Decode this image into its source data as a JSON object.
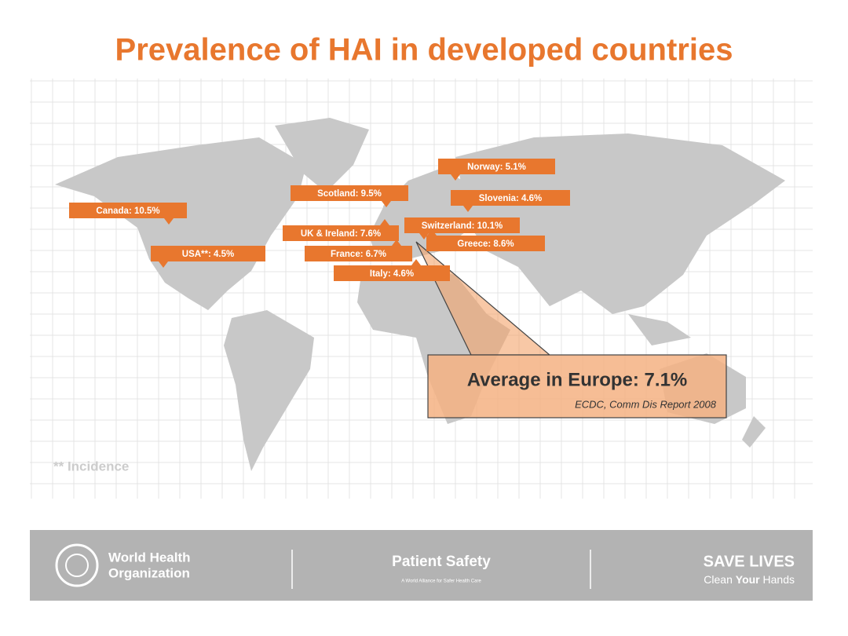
{
  "title": "Prevalence of HAI in developed countries",
  "labels": [
    {
      "text": "Canada: 10.5%"
    },
    {
      "text": "USA**: 4.5%"
    },
    {
      "text": "Scotland: 9.5%"
    },
    {
      "text": "Norway: 5.1%"
    },
    {
      "text": "Slovenia: 4.6%"
    },
    {
      "text": "UK & Ireland: 7.6%"
    },
    {
      "text": "Switzerland: 10.1%"
    },
    {
      "text": "Greece: 8.6%"
    },
    {
      "text": "France: 6.7%"
    },
    {
      "text": "Italy: 4.6%"
    }
  ],
  "callout": {
    "heading": "Average in Europe: 7.1%",
    "source": "ECDC, Comm Dis Report 2008"
  },
  "footnote": "** Incidence",
  "footer": {
    "org_line1": "World Health",
    "org_line2": "Organization",
    "center_title": "Patient Safety",
    "center_subtitle": "A World Alliance for Safer Health Care",
    "right_title": "SAVE LIVES",
    "right_sub_a": "Clean",
    "right_sub_b": "Your",
    "right_sub_c": "Hands"
  }
}
